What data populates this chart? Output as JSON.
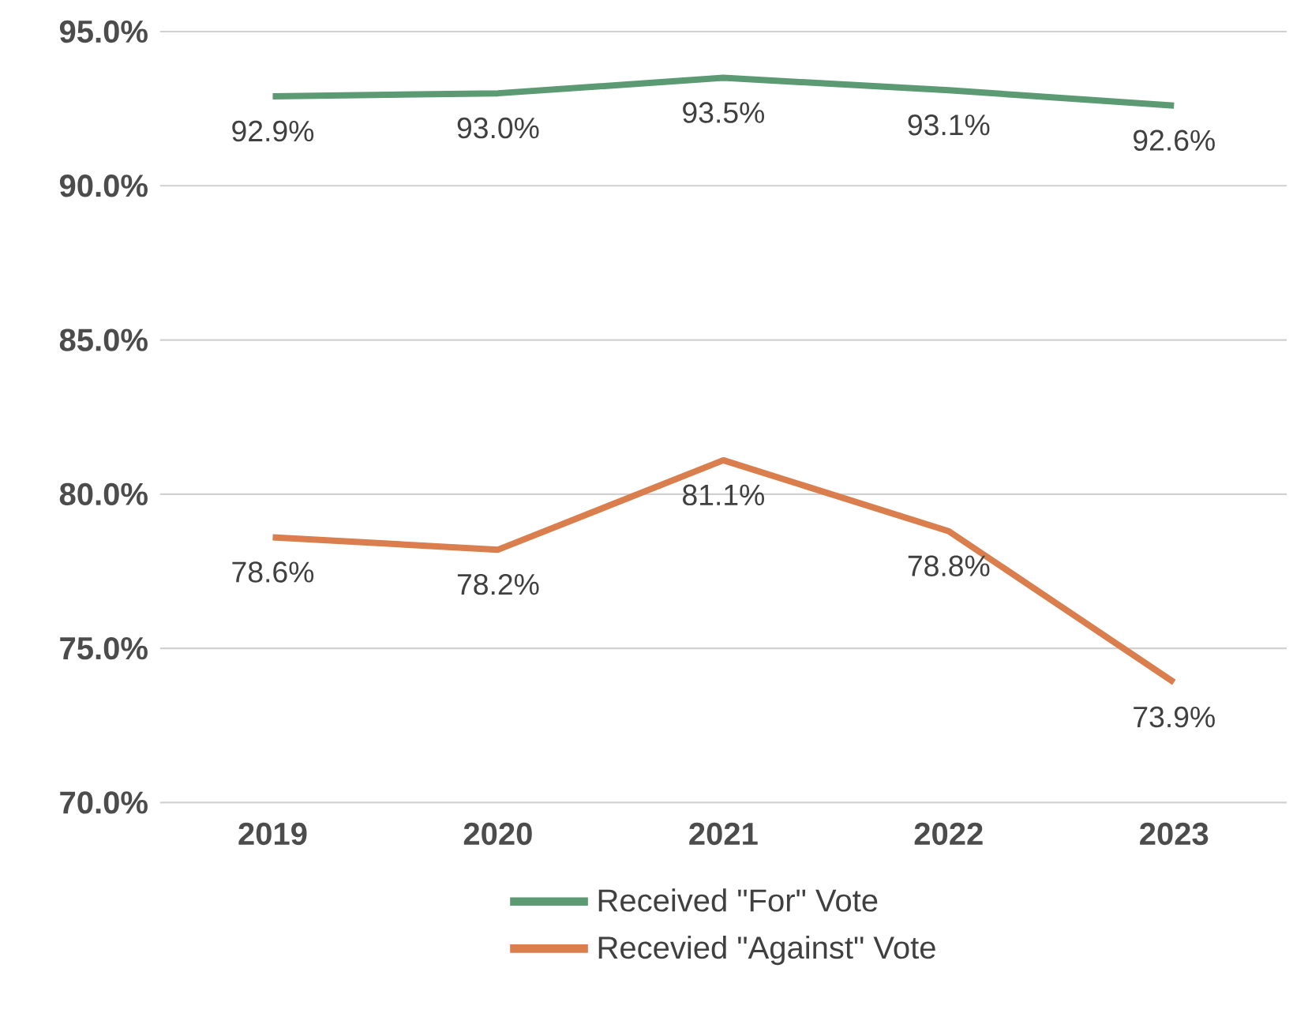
{
  "chart_data": {
    "type": "line",
    "categories": [
      "2019",
      "2020",
      "2021",
      "2022",
      "2023"
    ],
    "series": [
      {
        "name": "Received \"For\" Vote",
        "color": "#5b9a73",
        "values": [
          92.9,
          93.0,
          93.5,
          93.1,
          92.6
        ],
        "value_labels": [
          "92.9%",
          "93.0%",
          "93.5%",
          "93.1%",
          "92.6%"
        ]
      },
      {
        "name": "Recevied \"Against\" Vote",
        "color": "#d97e4c",
        "values": [
          78.6,
          78.2,
          81.1,
          78.8,
          73.9
        ],
        "value_labels": [
          "78.6%",
          "78.2%",
          "81.1%",
          "78.8%",
          "73.9%"
        ]
      }
    ],
    "ylim": [
      70,
      95
    ],
    "yticks": [
      {
        "value": 70,
        "label": "70.0%"
      },
      {
        "value": 75,
        "label": "75.0%"
      },
      {
        "value": 80,
        "label": "80.0%"
      },
      {
        "value": 85,
        "label": "85.0%"
      },
      {
        "value": 90,
        "label": "90.0%"
      },
      {
        "value": 95,
        "label": "95.0%"
      }
    ],
    "grid": "y",
    "legend": "bottom",
    "marker": "none",
    "line_style": "solid"
  }
}
